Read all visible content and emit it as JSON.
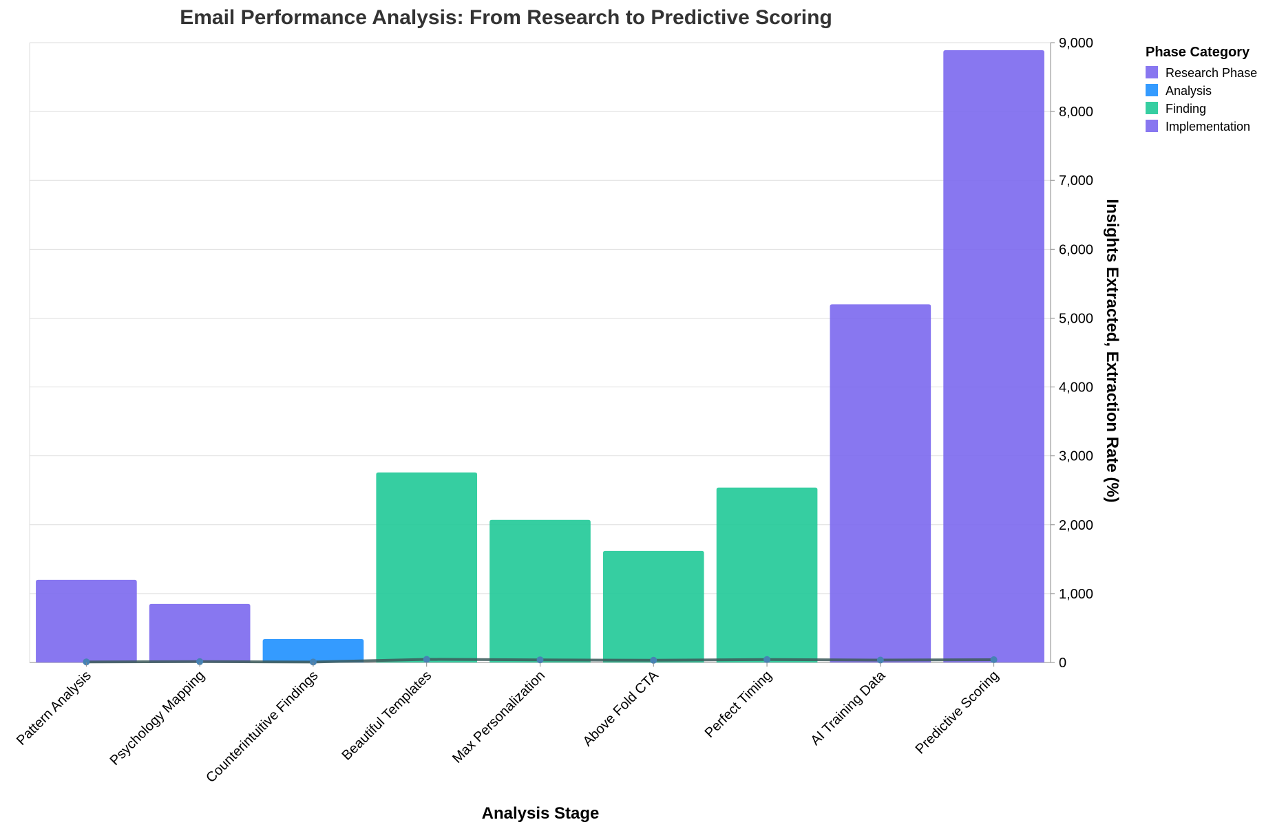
{
  "chart_data": {
    "type": "bar",
    "title": "Email Performance Analysis: From Research to Predictive Scoring",
    "xlabel": "Analysis Stage",
    "ylabel": "Insights Extracted, Extraction Rate (%)",
    "ylim": [
      0,
      9000
    ],
    "yticks": [
      0,
      1000,
      2000,
      3000,
      4000,
      5000,
      6000,
      7000,
      8000,
      9000
    ],
    "ytick_labels": [
      "0",
      "1,000",
      "2,000",
      "3,000",
      "4,000",
      "5,000",
      "6,000",
      "7,000",
      "8,000",
      "9,000"
    ],
    "grid": true,
    "legend_position": "top-right",
    "legend_title": "Phase Category",
    "categories": [
      "Pattern Analysis",
      "Psychology Mapping",
      "Counterintuitive Findings",
      "Beautiful Templates",
      "Max Personalization",
      "Above Fold CTA",
      "Perfect Timing",
      "AI Training Data",
      "Predictive Scoring"
    ],
    "values": [
      1200,
      850,
      340,
      2760,
      2070,
      1620,
      2540,
      5200,
      8890
    ],
    "phase": [
      "Research Phase",
      "Research Phase",
      "Analysis",
      "Finding",
      "Finding",
      "Finding",
      "Finding",
      "Implementation",
      "Implementation"
    ],
    "line_values": [
      8,
      12,
      6,
      45,
      38,
      32,
      42,
      35,
      40
    ],
    "legend": [
      {
        "label": "Research Phase",
        "color": "#7B68EE"
      },
      {
        "label": "Analysis",
        "color": "#1E90FF"
      },
      {
        "label": "Finding",
        "color": "#20C997"
      },
      {
        "label": "Implementation",
        "color": "#7B68EE"
      }
    ],
    "line_color": "#3d5a5a",
    "point_color": "#4682B4"
  }
}
